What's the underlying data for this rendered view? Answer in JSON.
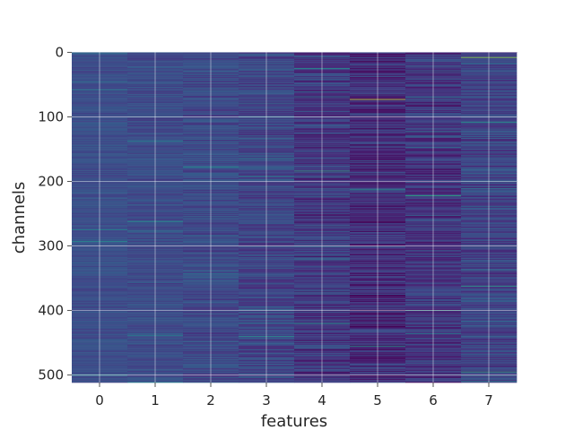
{
  "chart_data": {
    "type": "heatmap",
    "title": "",
    "xlabel": "features",
    "ylabel": "channels",
    "x_categories": [
      0,
      1,
      2,
      3,
      4,
      5,
      6,
      7
    ],
    "x_ticks": [
      "0",
      "1",
      "2",
      "3",
      "4",
      "5",
      "6",
      "7"
    ],
    "y_ticks": [
      "0",
      "100",
      "200",
      "300",
      "400",
      "500"
    ],
    "y_tick_values": [
      0,
      100,
      200,
      300,
      400,
      500
    ],
    "ylim": [
      511.5,
      -0.5
    ],
    "xlim": [
      -0.5,
      7.5
    ],
    "rows": 512,
    "grid": true,
    "colormap": "viridis",
    "colormap_stops": [
      "#440154",
      "#482878",
      "#3e4989",
      "#31688e",
      "#26828e",
      "#1f9e89",
      "#35b779",
      "#6ece58",
      "#b5de2b",
      "#fde725"
    ],
    "column_base_levels": [
      0.24,
      0.23,
      0.22,
      0.21,
      0.17,
      0.13,
      0.16,
      0.2
    ],
    "column_variation": [
      0.05,
      0.06,
      0.08,
      0.1,
      0.12,
      0.12,
      0.12,
      0.11
    ],
    "highlights": [
      {
        "feature": 5,
        "channel": 73,
        "level": 0.92
      },
      {
        "feature": 7,
        "channel": 8,
        "level": 0.85
      },
      {
        "feature": 6,
        "channel": 222,
        "level": 0.62
      },
      {
        "feature": 5,
        "channel": 213,
        "level": 0.55
      },
      {
        "feature": 4,
        "channel": 184,
        "level": 0.6
      },
      {
        "feature": 7,
        "channel": 362,
        "level": 0.58
      },
      {
        "feature": 7,
        "channel": 495,
        "level": 0.62
      },
      {
        "feature": 0,
        "channel": 500,
        "level": 0.55
      },
      {
        "feature": 4,
        "channel": 420,
        "level": 0.55
      },
      {
        "feature": 3,
        "channel": 440,
        "level": 0.5
      },
      {
        "feature": 1,
        "channel": 262,
        "level": 0.5
      },
      {
        "feature": 2,
        "channel": 178,
        "level": 0.48
      },
      {
        "feature": 6,
        "channel": 400,
        "level": 0.55
      },
      {
        "feature": 5,
        "channel": 455,
        "level": 0.55
      }
    ]
  }
}
